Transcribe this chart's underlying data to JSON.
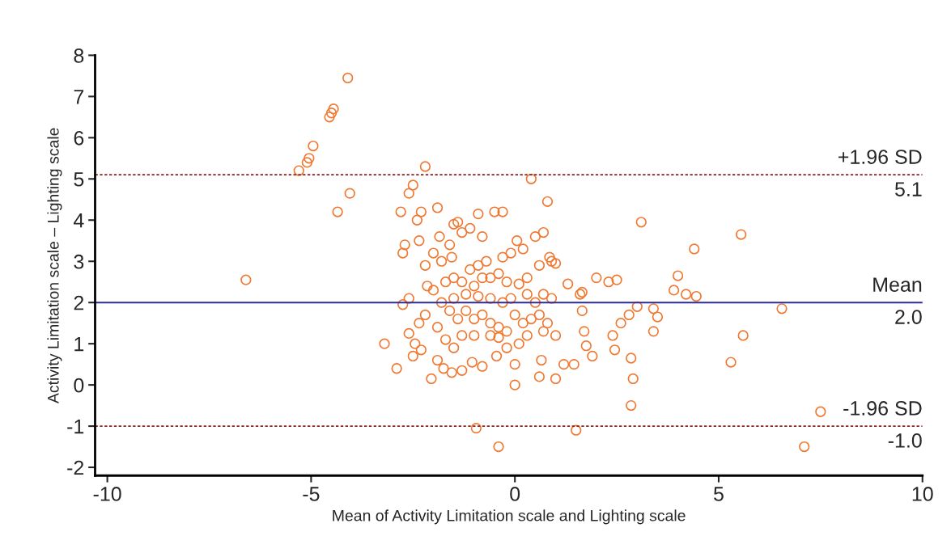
{
  "chart_data": {
    "type": "scatter",
    "xlabel": "Mean of Activity Limitation scale and Lighting scale",
    "ylabel": "Activity Limitation scale – Lighting scale",
    "xlim": [
      -10.3,
      10
    ],
    "ylim": [
      -2.2,
      8
    ],
    "xticks": [
      -10,
      -5,
      0,
      5,
      10
    ],
    "yticks": [
      -2,
      -1,
      0,
      1,
      2,
      3,
      4,
      5,
      6,
      7,
      8
    ],
    "grid": false,
    "legend": false,
    "marker": "circle",
    "series": [
      {
        "color": "#f07830",
        "x": [
          -6.6,
          -5.3,
          -5.1,
          -5.05,
          -4.95,
          -4.55,
          -4.5,
          -4.45,
          -4.1,
          -4.05,
          -4.35,
          -3.2,
          -2.9,
          -2.8,
          -2.75,
          -2.7,
          -2.6,
          -2.5,
          -2.4,
          -2.3,
          -2.2,
          -2.75,
          -2.6,
          -2.6,
          -2.45,
          -2.5,
          -2.3,
          -2.35,
          -2.2,
          -2.15,
          -2.2,
          -2.35,
          -2.0,
          -1.8,
          -1.9,
          -1.85,
          -1.6,
          -1.5,
          -1.4,
          -1.3,
          -1.1,
          -0.9,
          -0.8,
          -0.5,
          -0.3,
          0.4,
          0.8,
          -1.55,
          -1.3,
          -1.1,
          -0.9,
          -0.7,
          -0.6,
          -0.3,
          -0.1,
          0.05,
          0.2,
          0.5,
          0.7,
          0.9,
          0.85,
          1.0,
          1.3,
          0.6,
          0.3,
          0.1,
          -0.2,
          -0.4,
          -0.8,
          -1.0,
          -1.5,
          -1.7,
          -2.0,
          -1.6,
          -1.4,
          -1.2,
          -1.0,
          -0.8,
          -0.6,
          -0.4,
          -0.2,
          0.0,
          0.2,
          0.4,
          0.6,
          0.8,
          1.0,
          -1.9,
          -1.7,
          -1.5,
          -1.3,
          -1.0,
          -0.6,
          -0.4,
          -1.9,
          -1.75,
          -1.55,
          -1.3,
          -1.05,
          -0.8,
          -0.45,
          -2.05,
          0.0,
          0.0,
          -0.95,
          -0.4,
          0.65,
          0.6,
          1.0,
          1.2,
          1.45,
          1.5,
          1.6,
          1.65,
          1.65,
          1.7,
          1.75,
          1.9,
          2.0,
          2.3,
          2.5,
          2.4,
          2.45,
          2.6,
          2.85,
          2.8,
          2.9,
          2.85,
          3.0,
          3.1,
          3.4,
          3.5,
          3.4,
          3.9,
          4.0,
          4.2,
          4.4,
          4.45,
          5.3,
          5.55,
          5.6,
          6.55,
          7.1,
          7.5,
          0.3,
          0.5,
          0.7,
          0.9,
          -0.1,
          -0.3,
          -0.6,
          -0.9,
          -1.2,
          -1.5,
          -1.8,
          0.1,
          0.3,
          -0.2,
          0.7
        ],
        "values": [
          2.55,
          5.2,
          5.4,
          5.5,
          5.8,
          6.5,
          6.6,
          6.7,
          7.45,
          4.65,
          4.2,
          1.0,
          0.4,
          4.2,
          3.2,
          3.4,
          4.65,
          4.85,
          4.0,
          4.2,
          5.3,
          1.95,
          2.1,
          1.25,
          1.0,
          0.7,
          0.85,
          1.5,
          1.7,
          2.4,
          2.9,
          3.5,
          3.2,
          3.0,
          4.3,
          3.6,
          3.4,
          3.9,
          3.95,
          3.7,
          3.8,
          4.15,
          3.6,
          4.2,
          4.2,
          5.0,
          4.45,
          3.1,
          2.5,
          2.8,
          2.9,
          3.0,
          2.6,
          3.1,
          3.2,
          3.5,
          3.3,
          3.6,
          3.7,
          3.0,
          3.1,
          2.95,
          2.45,
          2.9,
          2.6,
          2.45,
          2.5,
          2.7,
          2.6,
          2.4,
          2.6,
          2.5,
          2.3,
          1.8,
          1.6,
          1.8,
          1.6,
          1.7,
          1.5,
          1.4,
          1.3,
          1.7,
          1.5,
          1.6,
          1.7,
          1.5,
          1.2,
          1.4,
          1.1,
          0.9,
          1.2,
          1.2,
          1.2,
          1.15,
          0.6,
          0.4,
          0.3,
          0.35,
          0.55,
          0.45,
          0.7,
          0.15,
          0.5,
          0.0,
          -1.05,
          -1.5,
          0.6,
          0.2,
          0.15,
          0.5,
          0.5,
          -1.1,
          2.2,
          2.25,
          1.8,
          1.3,
          0.95,
          0.7,
          2.6,
          2.5,
          2.55,
          1.2,
          0.85,
          1.5,
          0.65,
          1.7,
          0.15,
          -0.5,
          1.9,
          3.95,
          1.85,
          1.65,
          1.3,
          2.3,
          2.65,
          2.2,
          3.3,
          2.15,
          0.55,
          3.65,
          1.2,
          1.85,
          -1.5,
          -0.65,
          2.2,
          2.0,
          2.2,
          2.1,
          2.1,
          2.0,
          2.1,
          2.15,
          2.2,
          2.1,
          2.0,
          1.0,
          1.2,
          0.9,
          1.3
        ]
      }
    ],
    "ref_lines": [
      {
        "axis": "y",
        "value": 5.1,
        "label": "+1.96 SD",
        "color": "#8b2323",
        "line_style": "dotted"
      },
      {
        "axis": "y",
        "value": 2.0,
        "label": "Mean",
        "color": "#2b2b9c",
        "line_style": "solid"
      },
      {
        "axis": "y",
        "value": -1.0,
        "label": "-1.96 SD",
        "color": "#8b2323",
        "line_style": "dotted"
      }
    ],
    "annotations": [
      {
        "text": "5.1",
        "y": 5.1
      },
      {
        "text": "2.0",
        "y": 2.0
      },
      {
        "text": "-1.0",
        "y": -1.0
      }
    ]
  }
}
